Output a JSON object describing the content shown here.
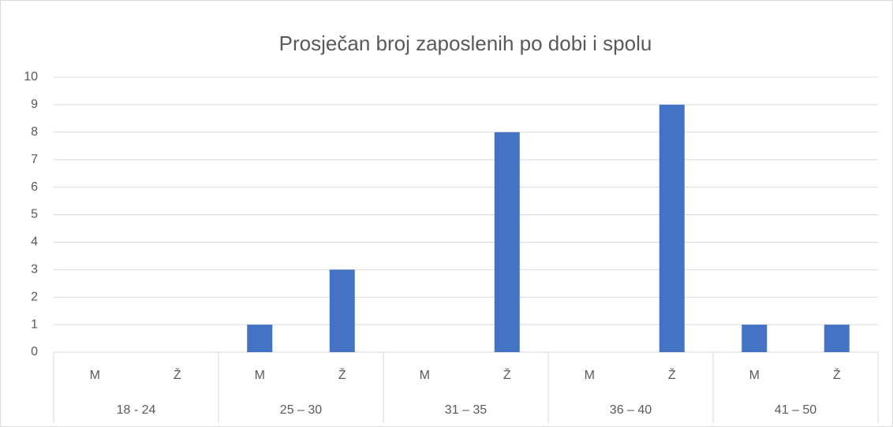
{
  "chart_data": {
    "type": "bar",
    "title": "Prosječan broj zaposlenih po dobi i spolu",
    "categories": [
      "M",
      "Ž",
      "M",
      "Ž",
      "M",
      "Ž",
      "M",
      "Ž",
      "M",
      "Ž"
    ],
    "groups": [
      "18 - 24",
      "25 – 30",
      "31 – 35",
      "36 – 40",
      "41 – 50"
    ],
    "values": [
      0,
      0,
      1,
      3,
      0,
      8,
      0,
      9,
      1,
      1
    ],
    "color": "#4472c4",
    "ylim": [
      0,
      10
    ],
    "yticks": [
      0,
      1,
      2,
      3,
      4,
      5,
      6,
      7,
      8,
      9,
      10
    ],
    "grid": true
  }
}
